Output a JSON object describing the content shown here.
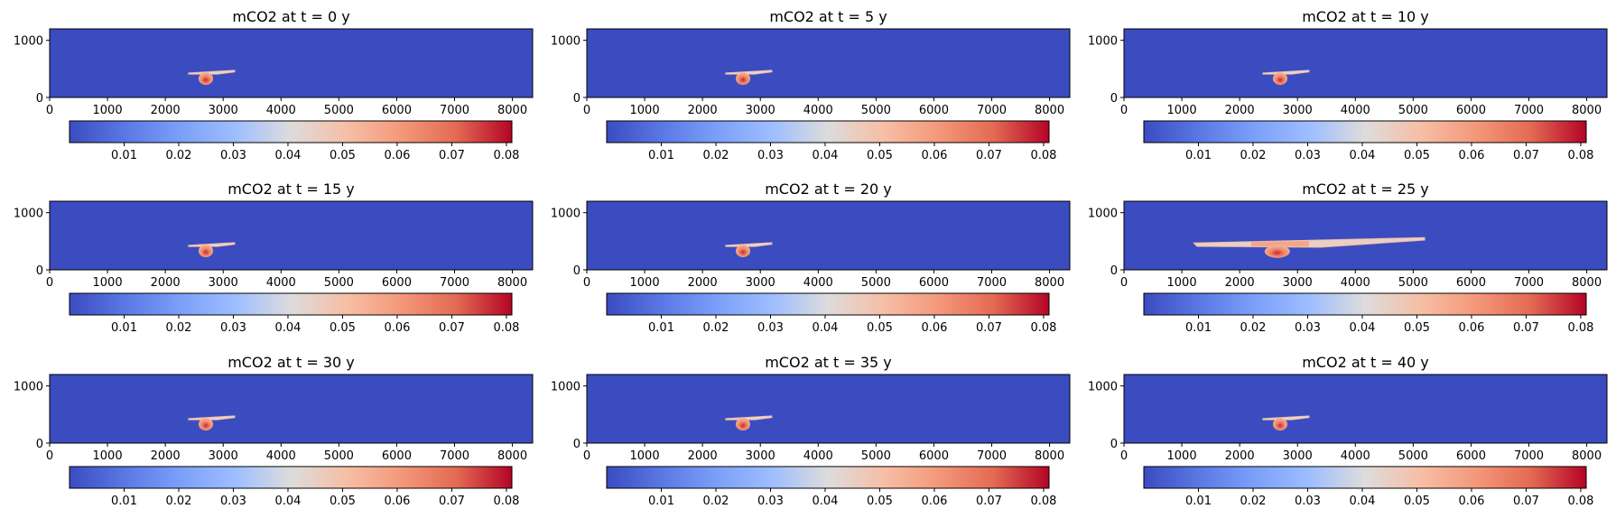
{
  "chart_data": {
    "type": "heatmap",
    "colormap": "coolwarm",
    "background_color": "#3b4cc0",
    "x_ticks": [
      "0",
      "1000",
      "2000",
      "3000",
      "4000",
      "5000",
      "6000",
      "7000",
      "8000"
    ],
    "y_ticks": [
      "0",
      "1000"
    ],
    "xlim": [
      0,
      8350
    ],
    "ylim": [
      0,
      1200
    ],
    "colorbar": {
      "range": [
        0,
        0.081
      ],
      "ticks": [
        "0.01",
        "0.02",
        "0.03",
        "0.04",
        "0.05",
        "0.06",
        "0.07",
        "0.08"
      ],
      "tick_values": [
        0.01,
        0.02,
        0.03,
        0.04,
        0.05,
        0.06,
        0.07,
        0.08
      ]
    },
    "panels": [
      {
        "title": "mCO2 at t = 0 y",
        "plume_x": [
          2400,
          3200
        ],
        "plume_y": 430,
        "core_x": 2700,
        "core_y": 330,
        "core_value": 0.065,
        "spread": "small"
      },
      {
        "title": "mCO2 at t = 5 y",
        "plume_x": [
          2400,
          3200
        ],
        "plume_y": 430,
        "core_x": 2700,
        "core_y": 330,
        "core_value": 0.065,
        "spread": "small"
      },
      {
        "title": "mCO2 at t = 10 y",
        "plume_x": [
          2400,
          3200
        ],
        "plume_y": 430,
        "core_x": 2700,
        "core_y": 330,
        "core_value": 0.065,
        "spread": "small"
      },
      {
        "title": "mCO2 at t = 15 y",
        "plume_x": [
          2400,
          3200
        ],
        "plume_y": 430,
        "core_x": 2700,
        "core_y": 330,
        "core_value": 0.065,
        "spread": "small"
      },
      {
        "title": "mCO2 at t = 20 y",
        "plume_x": [
          2400,
          3200
        ],
        "plume_y": 430,
        "core_x": 2700,
        "core_y": 330,
        "core_value": 0.065,
        "spread": "small"
      },
      {
        "title": "mCO2 at t = 25 y",
        "plume_x": [
          1200,
          5200
        ],
        "plume_y": 440,
        "core_x": 2650,
        "core_y": 320,
        "core_value": 0.07,
        "spread": "large"
      },
      {
        "title": "mCO2 at t = 30 y",
        "plume_x": [
          2400,
          3200
        ],
        "plume_y": 430,
        "core_x": 2700,
        "core_y": 330,
        "core_value": 0.065,
        "spread": "small"
      },
      {
        "title": "mCO2 at t = 35 y",
        "plume_x": [
          2400,
          3200
        ],
        "plume_y": 430,
        "core_x": 2700,
        "core_y": 330,
        "core_value": 0.065,
        "spread": "small"
      },
      {
        "title": "mCO2 at t = 40 y",
        "plume_x": [
          2400,
          3200
        ],
        "plume_y": 430,
        "core_x": 2700,
        "core_y": 330,
        "core_value": 0.065,
        "spread": "small"
      }
    ]
  }
}
